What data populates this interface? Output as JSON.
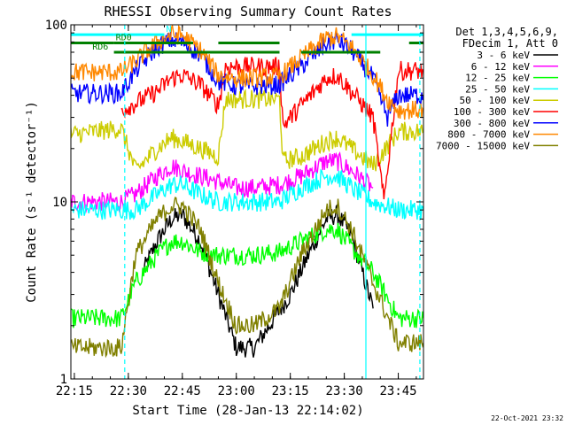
{
  "chart_data": {
    "type": "line",
    "title": "RHESSI Observing Summary Count Rates",
    "xlabel": "Start Time (28-Jan-13 22:14:02)",
    "ylabel": "Count Rate (s⁻¹ detector⁻¹)",
    "y_scale": "log",
    "ylim": [
      1,
      100
    ],
    "xlim": [
      "22:14:02",
      "23:52:00"
    ],
    "x_tick_labels": [
      "22:15",
      "22:30",
      "22:45",
      "23:00",
      "23:15",
      "23:30",
      "23:45"
    ],
    "y_tick_labels": [
      "1",
      "10",
      "100"
    ],
    "grid": false,
    "legend_position": "right",
    "legend_header": [
      "Det 1,3,4,5,6,9,",
      "FDecim 1, Att 0"
    ],
    "footer_date": "22-Oct-2021 23:32",
    "flag_labels": [
      "N",
      "RD0",
      "RD6"
    ],
    "flag_colors": {
      "N": "#00ffff",
      "RD0": "#008000",
      "RD6": "#008000"
    },
    "series": [
      {
        "name": "3 - 6 keV",
        "color": "#000000",
        "points": [
          [
            "22:34",
            4
          ],
          [
            "22:38",
            6
          ],
          [
            "22:42",
            8
          ],
          [
            "22:45",
            8.5
          ],
          [
            "22:50",
            6
          ],
          [
            "22:55",
            3
          ],
          [
            "23:00",
            1.5
          ],
          [
            "23:05",
            1.5
          ],
          [
            "23:15",
            3
          ],
          [
            "23:20",
            5
          ],
          [
            "23:25",
            8
          ],
          [
            "23:28",
            8.5
          ],
          [
            "23:32",
            6.5
          ],
          [
            "23:35",
            4
          ],
          [
            "23:38",
            2.5
          ]
        ]
      },
      {
        "name": "6 - 12 keV",
        "color": "#ff00ff",
        "points": [
          [
            "22:14",
            10
          ],
          [
            "22:28",
            10
          ],
          [
            "22:32",
            11
          ],
          [
            "22:38",
            14
          ],
          [
            "22:42",
            16
          ],
          [
            "22:45",
            15
          ],
          [
            "22:50",
            14
          ],
          [
            "22:55",
            13
          ],
          [
            "23:00",
            12
          ],
          [
            "23:05",
            12
          ],
          [
            "23:12",
            12.5
          ],
          [
            "23:18",
            14
          ],
          [
            "23:25",
            17
          ],
          [
            "23:28",
            17
          ],
          [
            "23:32",
            15
          ],
          [
            "23:38",
            12
          ]
        ]
      },
      {
        "name": "12 - 25 keV",
        "color": "#00ff00",
        "points": [
          [
            "22:14",
            2.2
          ],
          [
            "22:28",
            2.2
          ],
          [
            "22:32",
            3.5
          ],
          [
            "22:38",
            5
          ],
          [
            "22:42",
            6
          ],
          [
            "22:45",
            6
          ],
          [
            "22:50",
            5.2
          ],
          [
            "22:55",
            5
          ],
          [
            "23:00",
            5
          ],
          [
            "23:05",
            5
          ],
          [
            "23:12",
            5.2
          ],
          [
            "23:18",
            6
          ],
          [
            "23:25",
            7
          ],
          [
            "23:28",
            7
          ],
          [
            "23:32",
            5.5
          ],
          [
            "23:38",
            4
          ],
          [
            "23:45",
            2.2
          ],
          [
            "23:52",
            2.2
          ]
        ]
      },
      {
        "name": "25 - 50 keV",
        "color": "#00ffff",
        "points": [
          [
            "22:14",
            9
          ],
          [
            "22:28",
            9
          ],
          [
            "22:32",
            9
          ],
          [
            "22:38",
            11
          ],
          [
            "22:42",
            12.5
          ],
          [
            "22:45",
            12.5
          ],
          [
            "22:50",
            11
          ],
          [
            "22:55",
            10
          ],
          [
            "23:00",
            10
          ],
          [
            "23:05",
            10
          ],
          [
            "23:12",
            10
          ],
          [
            "23:18",
            12
          ],
          [
            "23:25",
            14
          ],
          [
            "23:28",
            14
          ],
          [
            "23:32",
            12
          ],
          [
            "23:38",
            10
          ],
          [
            "23:45",
            9
          ],
          [
            "23:52",
            9
          ]
        ]
      },
      {
        "name": "50 - 100 keV",
        "color": "#cccc00",
        "points": [
          [
            "22:14",
            24
          ],
          [
            "22:28",
            26
          ],
          [
            "22:32",
            15
          ],
          [
            "22:38",
            20
          ],
          [
            "22:42",
            23
          ],
          [
            "22:45",
            22
          ],
          [
            "22:50",
            20
          ],
          [
            "22:55",
            18
          ],
          [
            "22:57",
            38
          ],
          [
            "23:05",
            38
          ],
          [
            "23:12",
            38
          ],
          [
            "23:13",
            17
          ],
          [
            "23:18",
            18
          ],
          [
            "23:25",
            22
          ],
          [
            "23:28",
            23
          ],
          [
            "23:32",
            20
          ],
          [
            "23:38",
            16
          ],
          [
            "23:45",
            25
          ],
          [
            "23:52",
            25
          ]
        ]
      },
      {
        "name": "100 - 300 keV",
        "color": "#ff0000",
        "points": [
          [
            "22:28",
            33
          ],
          [
            "22:32",
            36
          ],
          [
            "22:38",
            42
          ],
          [
            "22:42",
            50
          ],
          [
            "22:45",
            52
          ],
          [
            "22:50",
            46
          ],
          [
            "22:55",
            35
          ],
          [
            "22:57",
            58
          ],
          [
            "23:05",
            58
          ],
          [
            "23:12",
            58
          ],
          [
            "23:13",
            27
          ],
          [
            "23:18",
            35
          ],
          [
            "23:25",
            50
          ],
          [
            "23:28",
            52
          ],
          [
            "23:32",
            42
          ],
          [
            "23:38",
            30
          ],
          [
            "23:41",
            10
          ],
          [
            "23:45",
            55
          ],
          [
            "23:52",
            55
          ]
        ]
      },
      {
        "name": "300 - 800 keV",
        "color": "#0000ff",
        "points": [
          [
            "22:14",
            41
          ],
          [
            "22:28",
            41
          ],
          [
            "22:32",
            55
          ],
          [
            "22:38",
            75
          ],
          [
            "22:42",
            82
          ],
          [
            "22:45",
            80
          ],
          [
            "22:50",
            68
          ],
          [
            "22:55",
            48
          ],
          [
            "23:00",
            45
          ],
          [
            "23:05",
            45
          ],
          [
            "23:12",
            46
          ],
          [
            "23:18",
            58
          ],
          [
            "23:25",
            78
          ],
          [
            "23:28",
            82
          ],
          [
            "23:32",
            72
          ],
          [
            "23:38",
            50
          ],
          [
            "23:42",
            30
          ],
          [
            "23:45",
            40
          ],
          [
            "23:52",
            40
          ]
        ]
      },
      {
        "name": "800 - 7000 keV",
        "color": "#ff8800",
        "points": [
          [
            "22:14",
            54
          ],
          [
            "22:28",
            54
          ],
          [
            "22:32",
            62
          ],
          [
            "22:38",
            80
          ],
          [
            "22:42",
            88
          ],
          [
            "22:45",
            87
          ],
          [
            "22:50",
            72
          ],
          [
            "22:55",
            52
          ],
          [
            "23:00",
            50
          ],
          [
            "23:05",
            50
          ],
          [
            "23:12",
            51
          ],
          [
            "23:18",
            65
          ],
          [
            "23:25",
            84
          ],
          [
            "23:28",
            86
          ],
          [
            "23:32",
            75
          ],
          [
            "23:38",
            52
          ],
          [
            "23:42",
            38
          ],
          [
            "23:45",
            33
          ],
          [
            "23:52",
            33
          ]
        ]
      },
      {
        "name": "7000 - 15000 keV",
        "color": "#808000",
        "points": [
          [
            "22:14",
            1.5
          ],
          [
            "22:28",
            1.5
          ],
          [
            "22:32",
            5
          ],
          [
            "22:38",
            8
          ],
          [
            "22:42",
            9.5
          ],
          [
            "22:45",
            9.5
          ],
          [
            "22:50",
            7
          ],
          [
            "22:55",
            3.5
          ],
          [
            "23:00",
            2
          ],
          [
            "23:05",
            2
          ],
          [
            "23:12",
            2.5
          ],
          [
            "23:18",
            5
          ],
          [
            "23:25",
            9
          ],
          [
            "23:28",
            9.5
          ],
          [
            "23:32",
            7
          ],
          [
            "23:38",
            3.5
          ],
          [
            "23:45",
            1.6
          ],
          [
            "23:52",
            1.6
          ]
        ]
      }
    ],
    "flags": [
      {
        "name": "N",
        "color": "#00ffff",
        "y": 88,
        "segments": [
          [
            "22:14",
            "22:26"
          ],
          [
            "22:26",
            "22:40"
          ],
          [
            "23:32",
            "23:52"
          ]
        ]
      },
      {
        "name": "RD0",
        "color": "#008000",
        "y": 79,
        "segments": [
          [
            "22:14",
            "22:26"
          ],
          [
            "22:26",
            "22:48"
          ],
          [
            "22:55",
            "23:12"
          ],
          [
            "23:48",
            "23:52"
          ]
        ]
      },
      {
        "name": "RD6",
        "color": "#008000",
        "y": 70,
        "segments": [
          [
            "22:26",
            "23:12"
          ],
          [
            "23:18",
            "23:40"
          ]
        ]
      }
    ],
    "vlines": [
      {
        "x": "22:29",
        "color": "#00ffff",
        "style": "dashed"
      },
      {
        "x": "23:36",
        "color": "#00ffff",
        "style": "solid"
      },
      {
        "x": "23:51",
        "color": "#00ffff",
        "style": "dashed"
      }
    ]
  }
}
